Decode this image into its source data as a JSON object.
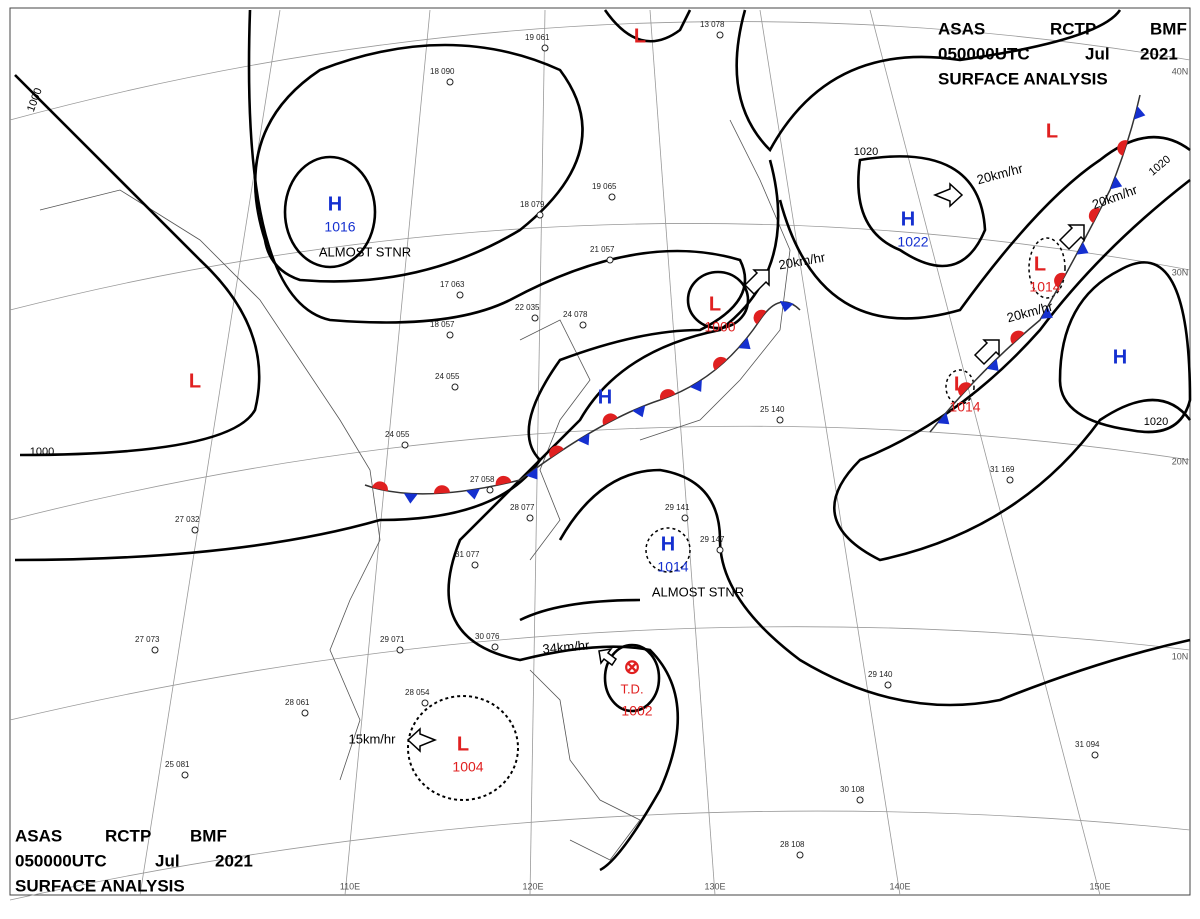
{
  "header": {
    "line1": [
      "ASAS",
      "RCTP",
      "BMF"
    ],
    "line2": [
      "050000UTC",
      "Jul",
      "2021"
    ],
    "line3": "SURFACE ANALYSIS"
  },
  "centers": [
    {
      "letter": "H",
      "value": "1016",
      "note": "ALMOST STNR"
    },
    {
      "letter": "L"
    },
    {
      "letter": "L"
    },
    {
      "letter": "L",
      "value": "1000"
    },
    {
      "letter": "H"
    },
    {
      "letter": "H",
      "value": "1014",
      "note": "ALMOST STNR"
    },
    {
      "letter": "⊗",
      "value": "1002",
      "note": "T.D."
    },
    {
      "letter": "L",
      "value": "1004"
    },
    {
      "letter": "H",
      "value": "1022"
    },
    {
      "letter": "L",
      "value": "1014"
    },
    {
      "letter": "L",
      "value": "1014"
    },
    {
      "letter": "L"
    },
    {
      "letter": "H"
    }
  ],
  "isobar_labels": [
    "1000",
    "1000",
    "1020",
    "1020",
    "1020"
  ],
  "motion_labels": [
    "20km/hr",
    "20km/hr",
    "20km/hr",
    "20km/hr",
    "34km/hr",
    "15km/hr"
  ],
  "longitude_labels": [
    "110E",
    "120E",
    "130E",
    "140E",
    "150E"
  ],
  "latitude_labels": [
    "40N",
    "30N",
    "20N",
    "10N"
  ],
  "stations": [
    "27 032",
    "27 073",
    "25 081",
    "28 061",
    "28 054",
    "29 071",
    "30 076",
    "31 077",
    "27 058",
    "28 077",
    "24 055",
    "24 055",
    "22 035",
    "24 078",
    "21 057",
    "17 063",
    "18 057",
    "18 090",
    "19 061",
    "19 065",
    "18 079",
    "13 078",
    "28 108",
    "31 094",
    "29 140",
    "31 169",
    "29 141",
    "29 147",
    "25 140",
    "30 108"
  ]
}
